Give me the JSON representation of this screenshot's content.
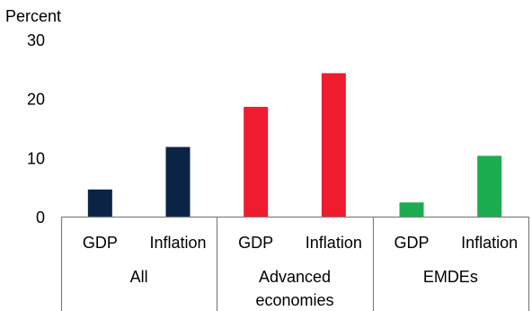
{
  "chart_data": {
    "type": "bar",
    "ylabel": "Percent",
    "ylim": [
      0,
      30
    ],
    "yticks": [
      0,
      10,
      20,
      30
    ],
    "groups": [
      {
        "name": "All",
        "color": "#0b2345",
        "bars": [
          {
            "category": "GDP",
            "value": 4.6
          },
          {
            "category": "Inflation",
            "value": 11.8
          }
        ]
      },
      {
        "name": "Advanced economies",
        "lines": [
          "Advanced",
          "economies"
        ],
        "color": "#ee1c2e",
        "bars": [
          {
            "category": "GDP",
            "value": 18.6
          },
          {
            "category": "Inflation",
            "value": 24.3
          }
        ]
      },
      {
        "name": "EMDEs",
        "color": "#1aac4f",
        "bars": [
          {
            "category": "GDP",
            "value": 2.4
          },
          {
            "category": "Inflation",
            "value": 10.3
          }
        ]
      }
    ]
  }
}
